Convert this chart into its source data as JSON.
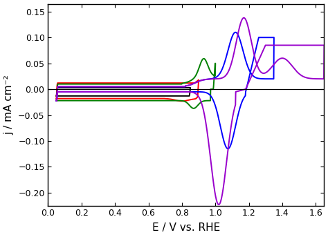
{
  "xlim": [
    0.0,
    1.65
  ],
  "ylim": [
    -0.225,
    0.165
  ],
  "xlabel": "E / V vs. RHE",
  "ylabel": "j / mA cm⁻²",
  "xticks": [
    0.0,
    0.2,
    0.4,
    0.6,
    0.8,
    1.0,
    1.2,
    1.4,
    1.6
  ],
  "yticks": [
    -0.2,
    -0.15,
    -0.1,
    -0.05,
    0.0,
    0.05,
    0.1,
    0.15
  ],
  "colors": {
    "black": "#000000",
    "red": "#ff0000",
    "green": "#008000",
    "blue": "#0000ff",
    "purple": "#9900cc"
  },
  "linewidth": 1.4,
  "background": "#ffffff"
}
